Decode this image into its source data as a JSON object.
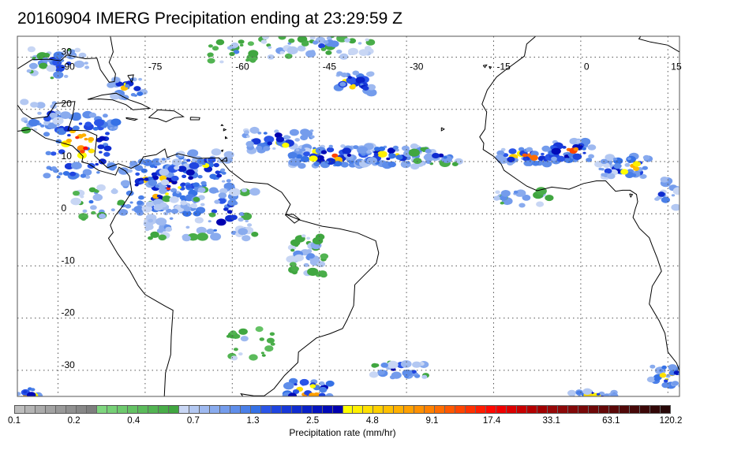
{
  "title": "20160904 IMERG Precipitation ending at 23:29:59 Z",
  "map": {
    "lon_range": [
      -97,
      17
    ],
    "lat_range": [
      -35,
      34
    ],
    "lon_ticks": [
      -90,
      -75,
      -60,
      -45,
      -30,
      -15,
      0,
      15
    ],
    "lat_ticks": [
      30,
      20,
      10,
      0,
      -10,
      -20,
      -30
    ],
    "lon_tick_labels": [
      "-90",
      "-75",
      "-60",
      "-45",
      "-30",
      "-15",
      "0",
      "15"
    ],
    "lat_tick_labels": [
      "30",
      "20",
      "10",
      "0",
      "-10",
      "-20",
      "-30"
    ],
    "grid": true,
    "coastline_color": "#000000"
  },
  "colorbar": {
    "label": "Precipitation rate (mm/hr)",
    "tick_labels": [
      "0.1",
      "0.2",
      "0.4",
      "0.7",
      "1.3",
      "2.5",
      "4.8",
      "9.1",
      "17.4",
      "33.1",
      "63.1",
      "120.2"
    ],
    "colors": [
      "#bdbdbd",
      "#b4b4b4",
      "#ababab",
      "#a2a2a2",
      "#999999",
      "#909090",
      "#878787",
      "#7e7e7e",
      "#7fd67f",
      "#76d076",
      "#6dc96d",
      "#64c264",
      "#5bbb5b",
      "#52b452",
      "#49ad49",
      "#40a640",
      "#c8d6f4",
      "#b3c8f2",
      "#9eb9f0",
      "#89abee",
      "#749cec",
      "#5f8eea",
      "#4a7fe8",
      "#3571e6",
      "#2a55e8",
      "#1f45e0",
      "#1738d8",
      "#0f2cd0",
      "#0820c8",
      "#0414c0",
      "#000ab8",
      "#0000b0",
      "#ffff00",
      "#fff000",
      "#ffe000",
      "#ffd000",
      "#ffc000",
      "#ffb000",
      "#ffa000",
      "#ff9000",
      "#ff8000",
      "#ff6c00",
      "#ff5800",
      "#ff4400",
      "#ff3000",
      "#ff1c00",
      "#ff0800",
      "#f00000",
      "#dc0000",
      "#c80000",
      "#b40000",
      "#a00000",
      "#960808",
      "#8c0808",
      "#820808",
      "#780808",
      "#6e0808",
      "#640808",
      "#5a0808",
      "#500808",
      "#460808",
      "#3c0808",
      "#320808",
      "#280808"
    ]
  }
}
